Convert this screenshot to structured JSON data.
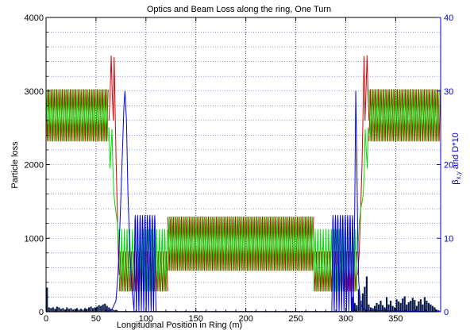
{
  "chart_data": {
    "type": "line",
    "title": "Optics and Beam Loss along the ring, One Turn",
    "xlabel": "Longitudinal Position in Ring (m)",
    "ylabel_left": "Particle loss",
    "ylabel_right_main": "β",
    "ylabel_right_sub": "x,y",
    "ylabel_right_tail": " and D*10",
    "xlim": [
      0,
      395
    ],
    "ylim_left": [
      0,
      4000
    ],
    "ylim_right": [
      0,
      40
    ],
    "x_ticks": [
      0,
      50,
      100,
      150,
      200,
      250,
      300,
      350
    ],
    "x_tick_labels": [
      "0",
      "50",
      "100",
      "150",
      "200",
      "250",
      "300",
      "350"
    ],
    "y_left_ticks": [
      0,
      1000,
      2000,
      3000,
      4000
    ],
    "y_left_tick_labels": [
      "0",
      "1000",
      "2000",
      "3000",
      "4000"
    ],
    "y_right_ticks": [
      0,
      10,
      20,
      30,
      40
    ],
    "y_right_tick_labels": [
      "0",
      "10",
      "20",
      "30",
      "40"
    ],
    "grid": "dotted",
    "colors": {
      "beta_x": "#e00000",
      "beta_y": "#00dd00",
      "dispersion": "#0000ee",
      "loss": "#0a1a4a",
      "right_axis": "#0000cc"
    },
    "series": [
      {
        "key": "beta_x",
        "segments": [
          {
            "kind": "osc",
            "x0": 0,
            "x1": 63,
            "lo": 23.2,
            "hi": 30.2,
            "period": 2.7,
            "phase": 0
          },
          {
            "kind": "pts",
            "pts": [
              [
                63,
                26
              ],
              [
                64.2,
                30
              ],
              [
                65.2,
                34.8
              ],
              [
                66.2,
                30
              ],
              [
                67.3,
                26
              ],
              [
                68.2,
                34.6
              ],
              [
                69.2,
                27
              ],
              [
                70.2,
                20
              ],
              [
                71.3,
                14
              ],
              [
                72.3,
                8
              ],
              [
                73.3,
                5
              ]
            ]
          },
          {
            "kind": "osc",
            "x0": 73.3,
            "x1": 122,
            "lo": 2.8,
            "hi": 8.2,
            "period": 2.7,
            "phase": 0.5
          },
          {
            "kind": "osc",
            "x0": 122,
            "x1": 268,
            "lo": 5.6,
            "hi": 12.9,
            "period": 2.7,
            "phase": 0
          },
          {
            "kind": "osc",
            "x0": 268,
            "x1": 312,
            "lo": 2.8,
            "hi": 8.2,
            "period": 2.7,
            "phase": 0.2
          },
          {
            "kind": "pts",
            "pts": [
              [
                312,
                5
              ],
              [
                313.5,
                8
              ],
              [
                315,
                14
              ],
              [
                316.3,
                20
              ],
              [
                317.3,
                27
              ],
              [
                318.3,
                34.7
              ],
              [
                319.3,
                26
              ],
              [
                320.3,
                30
              ],
              [
                321.3,
                34.8
              ],
              [
                322.3,
                30
              ],
              [
                323.3,
                26
              ]
            ]
          },
          {
            "kind": "osc",
            "x0": 323.3,
            "x1": 395,
            "lo": 23.2,
            "hi": 30.2,
            "period": 2.7,
            "phase": 0.5
          }
        ]
      },
      {
        "key": "beta_y",
        "segments": [
          {
            "kind": "osc",
            "x0": 0,
            "x1": 63,
            "lo": 23.2,
            "hi": 30.2,
            "period": 2.7,
            "phase": 0.5
          },
          {
            "kind": "pts",
            "pts": [
              [
                63,
                25
              ],
              [
                64,
                19.5
              ],
              [
                65,
                22
              ],
              [
                66,
                24.8
              ],
              [
                67,
                19
              ],
              [
                68,
                16
              ],
              [
                69,
                14.5
              ],
              [
                70,
                13.5
              ],
              [
                71.5,
                12
              ],
              [
                73,
                8
              ]
            ]
          },
          {
            "kind": "osc",
            "x0": 73,
            "x1": 122,
            "lo": 2.8,
            "hi": 11.2,
            "period": 2.7,
            "phase": 0
          },
          {
            "kind": "osc",
            "x0": 122,
            "x1": 268,
            "lo": 5.6,
            "hi": 12.9,
            "period": 2.7,
            "phase": 0.5
          },
          {
            "kind": "osc",
            "x0": 268,
            "x1": 312,
            "lo": 2.8,
            "hi": 11.2,
            "period": 2.7,
            "phase": 0.6
          },
          {
            "kind": "pts",
            "pts": [
              [
                312,
                8
              ],
              [
                313.5,
                12
              ],
              [
                315,
                14
              ],
              [
                316.5,
                15
              ],
              [
                317.5,
                16
              ],
              [
                318.5,
                19
              ],
              [
                319.5,
                24.8
              ],
              [
                320.5,
                22
              ],
              [
                321.5,
                19.5
              ],
              [
                322.5,
                25
              ],
              [
                323.5,
                24
              ]
            ]
          },
          {
            "kind": "osc",
            "x0": 323.5,
            "x1": 395,
            "lo": 23.2,
            "hi": 30.2,
            "period": 2.7,
            "phase": 0
          }
        ]
      },
      {
        "key": "dispersion",
        "segments": [
          {
            "kind": "pts",
            "pts": [
              [
                0,
                0
              ],
              [
                60,
                0
              ],
              [
                66,
                0.3
              ],
              [
                70,
                1.5
              ],
              [
                72,
                5
              ],
              [
                74,
                12
              ],
              [
                76,
                20
              ],
              [
                78,
                28
              ],
              [
                79,
                30
              ],
              [
                80.5,
                26
              ],
              [
                82,
                16
              ],
              [
                84,
                8
              ],
              [
                86,
                3
              ],
              [
                88,
                0.4
              ]
            ]
          },
          {
            "kind": "bumps",
            "x0": 88,
            "x1": 110,
            "period": 2.45,
            "peak": 13.1
          },
          {
            "kind": "pts",
            "pts": [
              [
                110,
                0
              ],
              [
                300,
                0
              ]
            ]
          },
          {
            "kind": "bumps",
            "x0": 286,
            "x1": 307,
            "period": 2.45,
            "peak": 13.1
          },
          {
            "kind": "pts",
            "pts": [
              [
                307,
                0.4
              ],
              [
                308,
                4
              ],
              [
                309,
                14
              ],
              [
                310,
                30
              ],
              [
                311,
                22
              ],
              [
                312,
                10
              ],
              [
                313,
                4
              ],
              [
                315,
                1
              ],
              [
                319,
                0.2
              ],
              [
                395,
                0
              ]
            ]
          }
        ]
      }
    ],
    "loss_bars": {
      "x": [
        1,
        3,
        5,
        7,
        9,
        11,
        13,
        15,
        17,
        19,
        21,
        23,
        25,
        27,
        29,
        31,
        33,
        35,
        37,
        39,
        41,
        43,
        45,
        47,
        49,
        51,
        53,
        55,
        57,
        59,
        61,
        63,
        65,
        67,
        69,
        71,
        73,
        75,
        77,
        79,
        81,
        83,
        85,
        87,
        89,
        91,
        93,
        95,
        97,
        99,
        101,
        103,
        105,
        107,
        109,
        111,
        113,
        115,
        117,
        119,
        121,
        123,
        125,
        127,
        129,
        131,
        133,
        135,
        137,
        139,
        141,
        143,
        145,
        147,
        149,
        151,
        153,
        155,
        157,
        159,
        161,
        163,
        165,
        167,
        169,
        171,
        173,
        175,
        177,
        179,
        181,
        183,
        185,
        187,
        189,
        191,
        193,
        195,
        197,
        199,
        201,
        203,
        205,
        207,
        209,
        211,
        213,
        215,
        217,
        219,
        221,
        223,
        225,
        227,
        229,
        231,
        233,
        235,
        237,
        239,
        241,
        243,
        245,
        247,
        249,
        251,
        253,
        255,
        257,
        259,
        261,
        263,
        265,
        267,
        269,
        271,
        273,
        275,
        277,
        279,
        281,
        283,
        285,
        287,
        289,
        291,
        293,
        295,
        297,
        299,
        301,
        303,
        305,
        307,
        309,
        311,
        313,
        315,
        317,
        319,
        321,
        323,
        325,
        327,
        329,
        331,
        333,
        335,
        337,
        339,
        341,
        343,
        345,
        347,
        349,
        351,
        353,
        355,
        357,
        359,
        361,
        363,
        365,
        367,
        369,
        371,
        373,
        375,
        377,
        379,
        381,
        383,
        385,
        387,
        389,
        391,
        393
      ],
      "values": [
        330,
        60,
        50,
        60,
        40,
        70,
        60,
        40,
        50,
        30,
        60,
        40,
        50,
        30,
        40,
        50,
        30,
        40,
        30,
        50,
        40,
        60,
        70,
        50,
        60,
        70,
        90,
        80,
        100,
        110,
        80,
        60,
        40,
        30,
        20,
        20,
        10,
        10,
        10,
        10,
        10,
        10,
        10,
        10,
        10,
        10,
        10,
        10,
        10,
        10,
        10,
        10,
        10,
        10,
        10,
        10,
        10,
        10,
        10,
        10,
        10,
        10,
        10,
        10,
        10,
        10,
        10,
        10,
        10,
        10,
        10,
        10,
        10,
        10,
        10,
        10,
        10,
        10,
        10,
        10,
        10,
        10,
        10,
        10,
        10,
        10,
        10,
        10,
        10,
        10,
        10,
        10,
        10,
        10,
        10,
        10,
        10,
        10,
        10,
        10,
        10,
        10,
        10,
        10,
        10,
        10,
        10,
        10,
        10,
        10,
        10,
        10,
        10,
        10,
        10,
        10,
        10,
        10,
        10,
        10,
        10,
        10,
        10,
        10,
        10,
        10,
        10,
        10,
        10,
        10,
        10,
        10,
        10,
        10,
        10,
        10,
        10,
        10,
        10,
        10,
        10,
        10,
        10,
        10,
        10,
        10,
        10,
        10,
        10,
        10,
        10,
        10,
        10,
        200,
        120,
        90,
        310,
        150,
        250,
        340,
        480,
        100,
        60,
        50,
        80,
        120,
        100,
        150,
        90,
        60,
        200,
        100,
        150,
        80,
        60,
        170,
        140,
        120,
        180,
        210,
        100,
        130,
        150,
        190,
        160,
        80,
        140,
        170,
        100,
        200,
        150,
        120,
        100,
        80,
        60,
        30,
        20
      ]
    }
  }
}
